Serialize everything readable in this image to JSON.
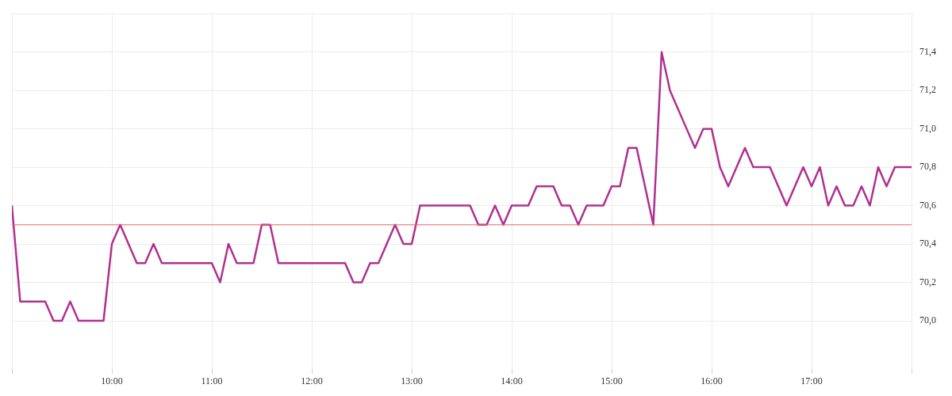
{
  "chart_data": {
    "type": "line",
    "xlim": [
      9,
      18
    ],
    "ylim": [
      69.75,
      71.6
    ],
    "xticks": [
      {
        "value": 10,
        "label": "10:00"
      },
      {
        "value": 11,
        "label": "11:00"
      },
      {
        "value": 12,
        "label": "12:00"
      },
      {
        "value": 13,
        "label": "13:00"
      },
      {
        "value": 14,
        "label": "14:00"
      },
      {
        "value": 15,
        "label": "15:00"
      },
      {
        "value": 16,
        "label": "16:00"
      },
      {
        "value": 17,
        "label": "17:00"
      }
    ],
    "yticks": [
      {
        "value": 70,
        "label": "70,0"
      },
      {
        "value": 70.2,
        "label": "70,2"
      },
      {
        "value": 70.4,
        "label": "70,4"
      },
      {
        "value": 70.6,
        "label": "70,6"
      },
      {
        "value": 70.8,
        "label": "70,8"
      },
      {
        "value": 71,
        "label": "71,0"
      },
      {
        "value": 71.2,
        "label": "71,2"
      },
      {
        "value": 71.4,
        "label": "71,4"
      }
    ],
    "grid": true,
    "legend": false,
    "marker": "none",
    "line_style": "solid",
    "ref_lines": [
      {
        "axis": "y",
        "value": 70.5,
        "color": "#f06060"
      }
    ],
    "x": [
      9,
      9.0833,
      9.1667,
      9.25,
      9.3333,
      9.4167,
      9.5,
      9.5833,
      9.6667,
      9.75,
      9.8333,
      9.9167,
      10,
      10.0833,
      10.1667,
      10.25,
      10.3333,
      10.4167,
      10.5,
      10.5833,
      10.6667,
      10.75,
      10.8333,
      10.9167,
      11,
      11.0833,
      11.1667,
      11.25,
      11.3333,
      11.4167,
      11.5,
      11.5833,
      11.6667,
      11.75,
      11.8333,
      11.9167,
      12,
      12.0833,
      12.1667,
      12.25,
      12.3333,
      12.4167,
      12.5,
      12.5833,
      12.6667,
      12.75,
      12.8333,
      12.9167,
      13,
      13.0833,
      13.1667,
      13.25,
      13.3333,
      13.4167,
      13.5,
      13.5833,
      13.6667,
      13.75,
      13.8333,
      13.9167,
      14,
      14.0833,
      14.1667,
      14.25,
      14.3333,
      14.4167,
      14.5,
      14.5833,
      14.6667,
      14.75,
      14.8333,
      14.9167,
      15,
      15.0833,
      15.1667,
      15.25,
      15.3333,
      15.4167,
      15.5,
      15.5833,
      15.6667,
      15.75,
      15.8333,
      15.9167,
      16,
      16.0833,
      16.1667,
      16.25,
      16.3333,
      16.4167,
      16.5,
      16.5833,
      16.6667,
      16.75,
      16.8333,
      16.9167,
      17,
      17.0833,
      17.1667,
      17.25,
      17.3333,
      17.4167,
      17.5,
      17.5833,
      17.6667,
      17.75,
      17.8333,
      17.9167,
      18
    ],
    "series": [
      {
        "color": "#b03090",
        "values": [
          70.6,
          70.1,
          70.1,
          70.1,
          70.1,
          70.0,
          70.0,
          70.1,
          70.0,
          70.0,
          70.0,
          70.0,
          70.4,
          70.5,
          70.4,
          70.3,
          70.3,
          70.4,
          70.3,
          70.3,
          70.3,
          70.3,
          70.3,
          70.3,
          70.3,
          70.2,
          70.4,
          70.3,
          70.3,
          70.3,
          70.5,
          70.5,
          70.3,
          70.3,
          70.3,
          70.3,
          70.3,
          70.3,
          70.3,
          70.3,
          70.3,
          70.2,
          70.2,
          70.3,
          70.3,
          70.4,
          70.5,
          70.4,
          70.4,
          70.6,
          70.6,
          70.6,
          70.6,
          70.6,
          70.6,
          70.6,
          70.5,
          70.5,
          70.6,
          70.5,
          70.6,
          70.6,
          70.6,
          70.7,
          70.7,
          70.7,
          70.6,
          70.6,
          70.5,
          70.6,
          70.6,
          70.6,
          70.7,
          70.7,
          70.9,
          70.9,
          70.7,
          70.5,
          71.4,
          71.2,
          71.1,
          71.0,
          70.9,
          71.0,
          71.0,
          70.8,
          70.7,
          70.8,
          70.9,
          70.8,
          70.8,
          70.8,
          70.7,
          70.6,
          70.7,
          70.8,
          70.7,
          70.8,
          70.6,
          70.7,
          70.6,
          70.6,
          70.7,
          70.6,
          70.8,
          70.7,
          70.8,
          70.8,
          70.8
        ]
      }
    ]
  }
}
